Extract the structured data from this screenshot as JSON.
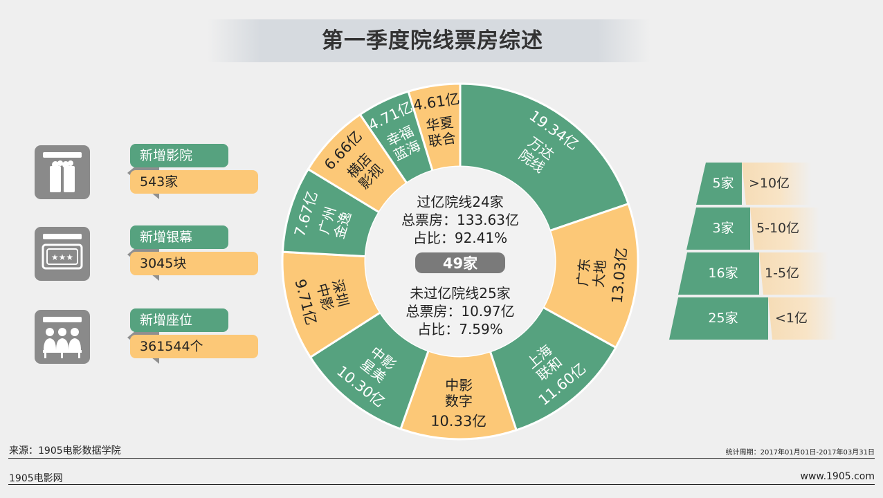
{
  "title": "第一季度院线票房综述",
  "stats": [
    {
      "label": "新增影院",
      "value": "543家",
      "icon": "cinema-building-icon"
    },
    {
      "label": "新增银幕",
      "value": "3045块",
      "icon": "screen-ticket-icon"
    },
    {
      "label": "新增座位",
      "value": "361544个",
      "icon": "audience-seats-icon"
    }
  ],
  "center": {
    "over_title": "过亿院线24家",
    "over_box": "总票房：133.63亿",
    "over_share": "占比：92.41%",
    "total": "49家",
    "under_title": "未过亿院线25家",
    "under_box": "总票房：10.97亿",
    "under_share": "占比：7.59%"
  },
  "chart_data": {
    "type": "pie",
    "title": "第一季度院线票房综述",
    "unit": "亿",
    "slices": [
      {
        "name": "万达院线",
        "name_lines": [
          "万达",
          "院线"
        ],
        "value": 19.34,
        "label": "19.34亿",
        "color": "#56a27f"
      },
      {
        "name": "广东大地",
        "name_lines": [
          "广东",
          "大地"
        ],
        "value": 13.03,
        "label": "13.03亿",
        "color": "#fcc877"
      },
      {
        "name": "上海联和",
        "name_lines": [
          "上海",
          "联和"
        ],
        "value": 11.6,
        "label": "11.60亿",
        "color": "#56a27f"
      },
      {
        "name": "中影数字",
        "name_lines": [
          "中影",
          "数字"
        ],
        "value": 10.33,
        "label": "10.33亿",
        "color": "#fcc877"
      },
      {
        "name": "中影星美",
        "name_lines": [
          "中影",
          "星美"
        ],
        "value": 10.3,
        "label": "10.30亿",
        "color": "#56a27f"
      },
      {
        "name": "深圳中影",
        "name_lines": [
          "深圳",
          "中影"
        ],
        "value": 9.71,
        "label": "9.71亿",
        "color": "#fcc877"
      },
      {
        "name": "广州金逸",
        "name_lines": [
          "广州",
          "金逸"
        ],
        "value": 7.67,
        "label": "7.67亿",
        "color": "#56a27f"
      },
      {
        "name": "横店影视",
        "name_lines": [
          "横店",
          "影视"
        ],
        "value": 6.66,
        "label": "6.66亿",
        "color": "#fcc877"
      },
      {
        "name": "幸福蓝海",
        "name_lines": [
          "幸福",
          "蓝海"
        ],
        "value": 4.71,
        "label": "4.71亿",
        "color": "#56a27f"
      },
      {
        "name": "华夏联合",
        "name_lines": [
          "华夏",
          "联合"
        ],
        "value": 4.61,
        "label": "4.61亿",
        "color": "#fcc877"
      }
    ]
  },
  "pyramid": [
    {
      "count": "5家",
      "range": ">10亿"
    },
    {
      "count": "3家",
      "range": "5-10亿"
    },
    {
      "count": "16家",
      "range": "1-5亿"
    },
    {
      "count": "25家",
      "range": "<1亿"
    }
  ],
  "footer": {
    "source": "来源：1905电影数据学院",
    "period": "统计周期：2017年01月01日-2017年03月31日",
    "brand": "1905电影网",
    "url": "www.1905.com"
  },
  "colors": {
    "green": "#56a27f",
    "orange": "#fcc877",
    "gray": "#8a8a8a",
    "cream": "#f6dcb6"
  }
}
